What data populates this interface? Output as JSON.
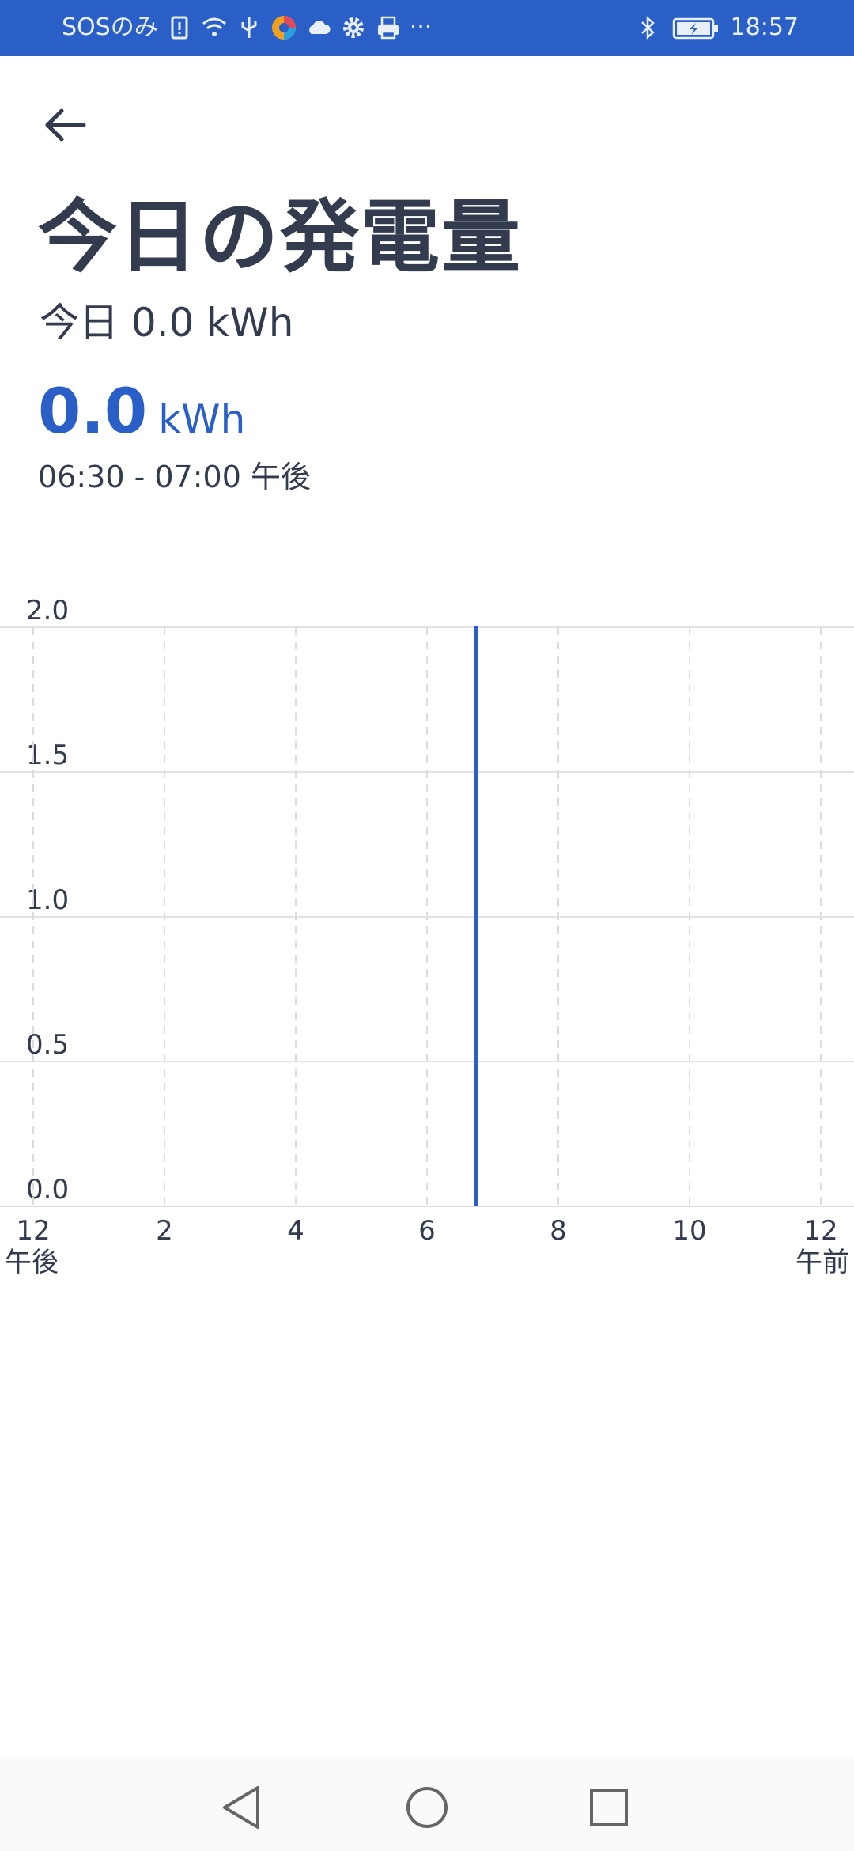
{
  "status_bar": {
    "carrier": "SOSのみ",
    "time": "18:57",
    "more": "···",
    "left_icons": [
      "sim-alert-icon",
      "wifi-icon",
      "usb-icon",
      "app-icon",
      "cloud-icon",
      "settings-icon",
      "printer-icon"
    ],
    "right_icons": [
      "bluetooth-icon",
      "battery-icon"
    ]
  },
  "header": {
    "title": "今日の発電量",
    "today_total": "今日 0.0 kWh"
  },
  "selection": {
    "value": "0.0",
    "unit": "kWh",
    "time_range": "06:30 - 07:00 午後"
  },
  "chart_data": {
    "type": "bar",
    "ylim": [
      0,
      2.0
    ],
    "y_ticks": [
      "0.0",
      "0.5",
      "1.0",
      "1.5",
      "2.0"
    ],
    "x_ticks": [
      {
        "label": "12",
        "sub": "午後",
        "hour": 12
      },
      {
        "label": "2",
        "sub": "",
        "hour": 14
      },
      {
        "label": "4",
        "sub": "",
        "hour": 16
      },
      {
        "label": "6",
        "sub": "",
        "hour": 18
      },
      {
        "label": "8",
        "sub": "",
        "hour": 20
      },
      {
        "label": "10",
        "sub": "",
        "hour": 22
      },
      {
        "label": "12",
        "sub": "午前",
        "hour": 24
      }
    ],
    "xlim_hours": [
      12,
      24
    ],
    "cursor_hour": 18.75,
    "values": [
      0.0
    ],
    "grid": true,
    "accent_color": "#2a5fc8"
  },
  "nav_bar": {
    "icons": [
      "back-triangle-icon",
      "home-circle-icon",
      "recents-square-icon"
    ]
  }
}
